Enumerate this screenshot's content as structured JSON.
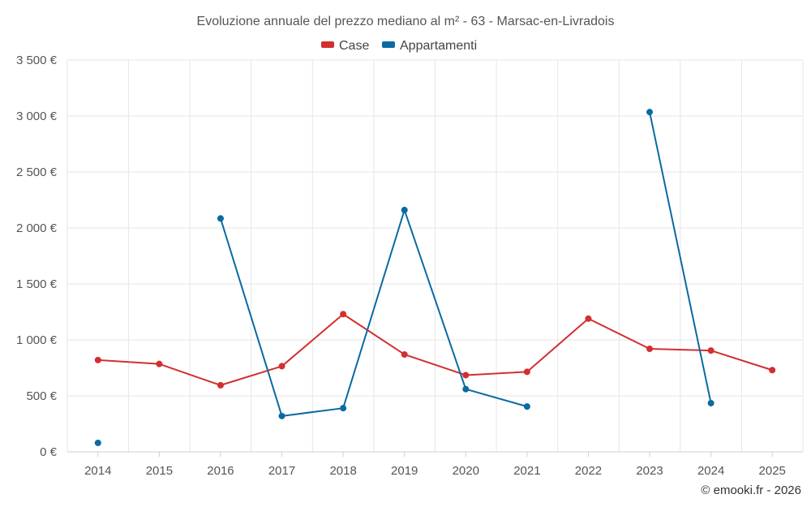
{
  "chart_data": {
    "type": "line",
    "title": "Evoluzione annuale del prezzo mediano al m² - 63 - Marsac-en-Livradois",
    "categories": [
      "2014",
      "2015",
      "2016",
      "2017",
      "2018",
      "2019",
      "2020",
      "2021",
      "2022",
      "2023",
      "2024",
      "2025"
    ],
    "ylim": [
      0,
      3500
    ],
    "y_ticks": [
      0,
      500,
      1000,
      1500,
      2000,
      2500,
      3000,
      3500
    ],
    "y_tick_labels": [
      "0 €",
      "500 €",
      "1 000 €",
      "1 500 €",
      "2 000 €",
      "2 500 €",
      "3 000 €",
      "3 500 €"
    ],
    "grid": true,
    "legend_position": "top-center",
    "series": [
      {
        "name": "Case",
        "color": "#d32f2f",
        "values": [
          820,
          785,
          595,
          765,
          1230,
          870,
          685,
          715,
          1190,
          920,
          905,
          730
        ]
      },
      {
        "name": "Appartamenti",
        "color": "#0a6aa1",
        "values": [
          80,
          null,
          2085,
          320,
          390,
          2160,
          560,
          405,
          null,
          3035,
          435,
          null
        ]
      }
    ]
  },
  "credit": "© emooki.fr - 2026"
}
